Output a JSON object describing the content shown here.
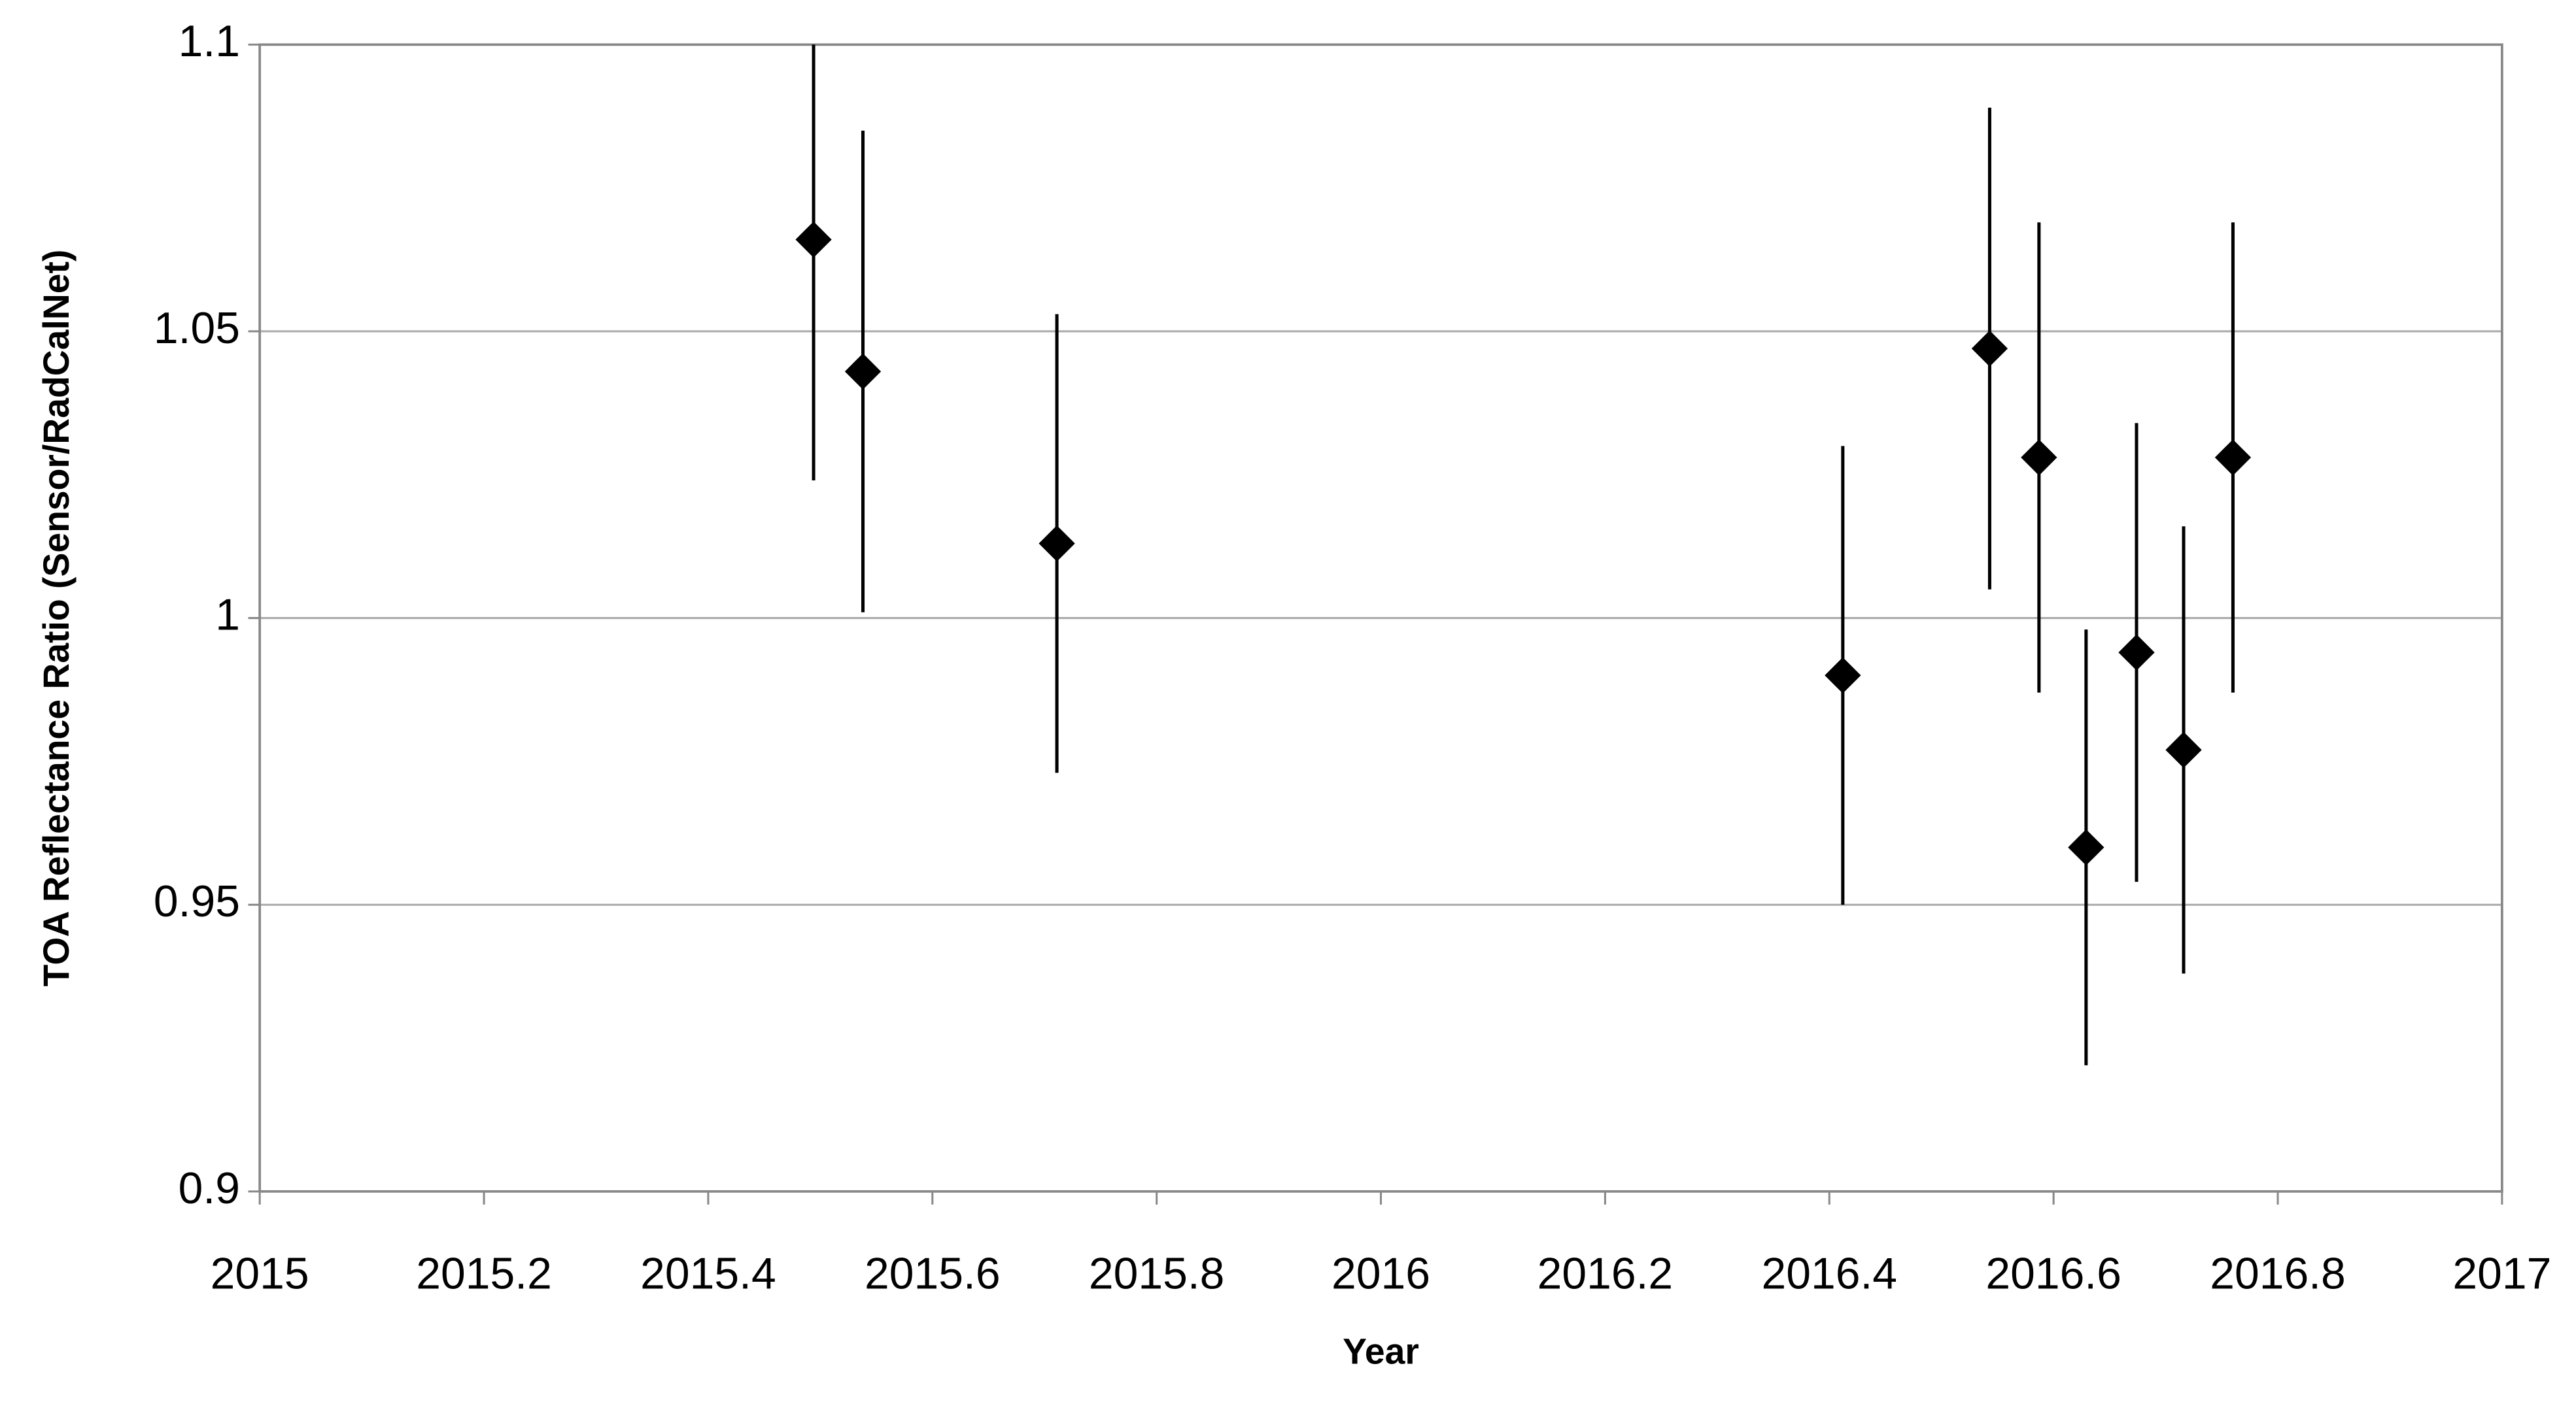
{
  "chart_data": {
    "type": "scatter",
    "x_label": "Year",
    "y_label": "TOA Reflectance Ratio (Sensor/RadCalNet)",
    "x": [
      2015.494,
      2015.538,
      2015.711,
      2016.412,
      2016.543,
      2016.587,
      2016.629,
      2016.674,
      2016.716,
      2016.76
    ],
    "series": [
      {
        "color": "#000000",
        "values": [
          1.066,
          1.043,
          1.013,
          0.99,
          1.047,
          1.028,
          0.96,
          0.994,
          0.977,
          1.028
        ],
        "errors": [
          0.042,
          0.042,
          0.04,
          0.04,
          0.042,
          0.041,
          0.038,
          0.04,
          0.039,
          0.041
        ]
      }
    ],
    "xlim": [
      2015,
      2017
    ],
    "xticks": [
      2015,
      2015.2,
      2015.4,
      2015.6,
      2015.8,
      2016,
      2016.2,
      2016.4,
      2016.6,
      2016.8,
      2017
    ],
    "ylim": [
      0.9,
      1.1
    ],
    "yticks": [
      0.9,
      0.95,
      1,
      1.05,
      1.1
    ],
    "grid": true
  }
}
